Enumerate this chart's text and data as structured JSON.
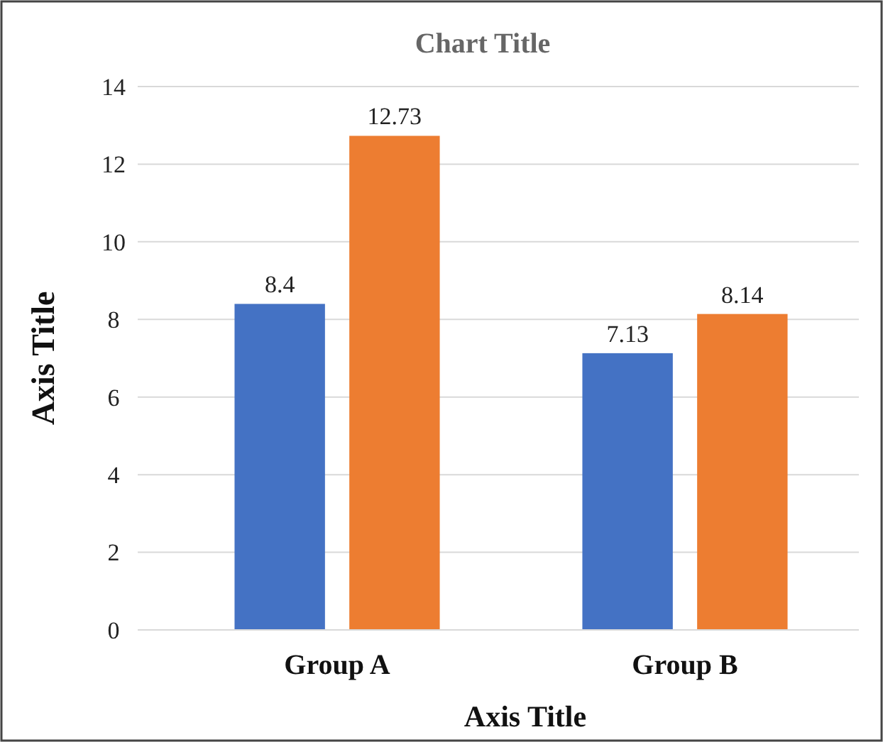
{
  "chart_data": {
    "type": "bar",
    "title": "Chart Title",
    "xlabel": "Axis Title",
    "ylabel": "Axis Title",
    "categories": [
      "Group A",
      "Group B"
    ],
    "series": [
      {
        "color": "#4472c4",
        "values": [
          8.4,
          7.13
        ]
      },
      {
        "color": "#ed7d31",
        "values": [
          12.73,
          8.14
        ]
      }
    ],
    "ylim": [
      0,
      14
    ],
    "yticks": [
      0,
      2,
      4,
      6,
      8,
      10,
      12,
      14
    ],
    "grid": "y",
    "data_labels": true
  }
}
